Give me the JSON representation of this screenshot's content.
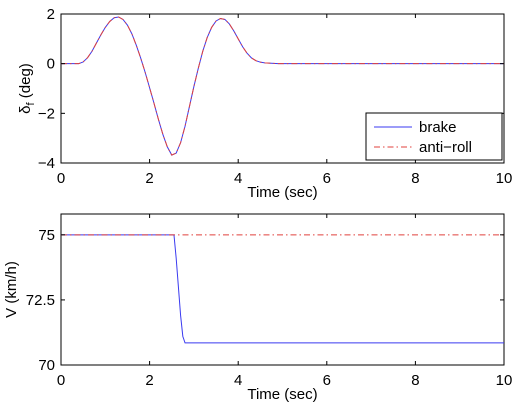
{
  "chart_data": [
    {
      "type": "line",
      "xlabel": "Time (sec)",
      "ylabel": "δf (deg)",
      "ylabel_main": "δ",
      "ylabel_sub": "f",
      "ylabel_rest": " (deg)",
      "xlim": [
        0,
        10
      ],
      "ylim": [
        -4,
        2
      ],
      "xticks": [
        0,
        2,
        4,
        6,
        8,
        10
      ],
      "yticks": [
        -4,
        -2,
        0,
        2
      ],
      "xtick_labels": [
        "0",
        "2",
        "4",
        "6",
        "8",
        "10"
      ],
      "ytick_labels": [
        "−4",
        "−2",
        "0",
        "2"
      ],
      "grid": false,
      "legend": {
        "placement": "bottom-right",
        "entries": [
          "brake",
          "anti−roll"
        ]
      },
      "series": [
        {
          "name": "brake",
          "color": "#3a3af0",
          "style": "solid",
          "x": [
            0,
            0.4,
            0.5,
            0.6,
            0.7,
            0.8,
            0.9,
            1.0,
            1.1,
            1.2,
            1.3,
            1.4,
            1.5,
            1.6,
            1.7,
            1.8,
            1.9,
            2.0,
            2.1,
            2.2,
            2.3,
            2.4,
            2.5,
            2.6,
            2.7,
            2.8,
            2.9,
            3.0,
            3.1,
            3.2,
            3.3,
            3.4,
            3.5,
            3.6,
            3.7,
            3.8,
            3.9,
            4.0,
            4.1,
            4.2,
            4.3,
            4.4,
            4.5,
            4.6,
            4.7,
            4.8,
            4.9,
            5.0,
            10
          ],
          "y": [
            0,
            0,
            0.07,
            0.24,
            0.5,
            0.83,
            1.16,
            1.46,
            1.7,
            1.85,
            1.88,
            1.78,
            1.55,
            1.2,
            0.74,
            0.22,
            -0.35,
            -0.97,
            -1.6,
            -2.25,
            -2.85,
            -3.35,
            -3.68,
            -3.6,
            -3.18,
            -2.52,
            -1.72,
            -0.92,
            -0.18,
            0.5,
            1.05,
            1.46,
            1.72,
            1.82,
            1.78,
            1.6,
            1.32,
            1.0,
            0.68,
            0.42,
            0.23,
            0.12,
            0.06,
            0.03,
            0.02,
            0.01,
            0,
            0,
            0
          ]
        },
        {
          "name": "anti−roll",
          "color": "#e0403c",
          "style": "dashdot",
          "x": [
            0,
            0.4,
            0.5,
            0.6,
            0.7,
            0.8,
            0.9,
            1.0,
            1.1,
            1.2,
            1.3,
            1.4,
            1.5,
            1.6,
            1.7,
            1.8,
            1.9,
            2.0,
            2.1,
            2.2,
            2.3,
            2.4,
            2.5,
            2.6,
            2.7,
            2.8,
            2.9,
            3.0,
            3.1,
            3.2,
            3.3,
            3.4,
            3.5,
            3.6,
            3.7,
            3.8,
            3.9,
            4.0,
            4.1,
            4.2,
            4.3,
            4.4,
            4.5,
            4.6,
            4.7,
            4.8,
            4.9,
            5.0,
            10
          ],
          "y": [
            0,
            0,
            0.07,
            0.24,
            0.5,
            0.83,
            1.16,
            1.46,
            1.7,
            1.85,
            1.88,
            1.78,
            1.55,
            1.2,
            0.74,
            0.22,
            -0.35,
            -0.97,
            -1.6,
            -2.25,
            -2.85,
            -3.35,
            -3.68,
            -3.6,
            -3.18,
            -2.52,
            -1.72,
            -0.92,
            -0.18,
            0.5,
            1.05,
            1.46,
            1.72,
            1.82,
            1.78,
            1.6,
            1.32,
            1.0,
            0.68,
            0.42,
            0.23,
            0.12,
            0.06,
            0.03,
            0.02,
            0.01,
            0,
            0,
            0
          ]
        }
      ]
    },
    {
      "type": "line",
      "xlabel": "Time (sec)",
      "ylabel": "V (km/h)",
      "xlim": [
        0,
        10
      ],
      "ylim": [
        70,
        75.8
      ],
      "xticks": [
        0,
        2,
        4,
        6,
        8,
        10
      ],
      "yticks": [
        70,
        72.5,
        75
      ],
      "xtick_labels": [
        "0",
        "2",
        "4",
        "6",
        "8",
        "10"
      ],
      "ytick_labels": [
        "70",
        "72.5",
        "75"
      ],
      "grid": false,
      "series": [
        {
          "name": "brake",
          "color": "#3a3af0",
          "style": "solid",
          "x": [
            0,
            2.55,
            2.6,
            2.65,
            2.7,
            2.75,
            2.8,
            10
          ],
          "y": [
            75,
            75,
            74.1,
            73.0,
            71.9,
            71.1,
            70.85,
            70.85
          ]
        },
        {
          "name": "anti−roll",
          "color": "#e0403c",
          "style": "dashdot",
          "x": [
            0,
            10
          ],
          "y": [
            75,
            75
          ]
        }
      ]
    }
  ]
}
